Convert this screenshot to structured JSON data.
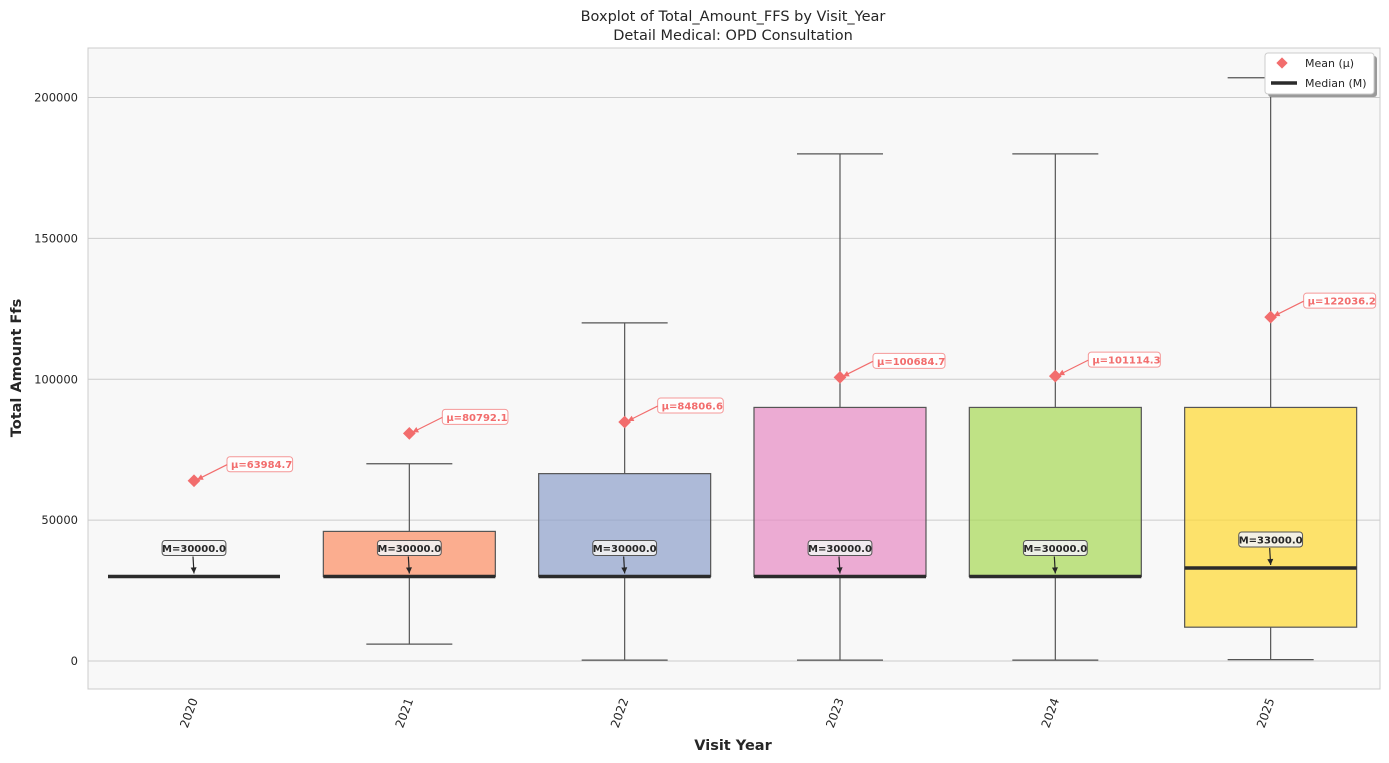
{
  "chart_data": {
    "type": "box",
    "title": "Boxplot of Total_Amount_FFS by Visit_Year",
    "subtitle": "Detail Medical: OPD Consultation",
    "xlabel": "Visit Year",
    "ylabel": "Total Amount Ffs",
    "ylim": [
      -10000,
      218000
    ],
    "yticks": [
      0,
      50000,
      100000,
      150000,
      200000
    ],
    "yticklabels": [
      "0",
      "50000",
      "100000",
      "150000",
      "200000"
    ],
    "grid": true,
    "legend_position": "top-right",
    "legend": [
      {
        "label": "Mean (μ)",
        "marker": "diamond",
        "color": "#f26d6d"
      },
      {
        "label": "Median (M)",
        "marker": "line",
        "color": "#2b2b2b"
      }
    ],
    "categories": [
      "2020",
      "2021",
      "2022",
      "2023",
      "2024",
      "2025"
    ],
    "boxes": [
      {
        "category": "2020",
        "whisker_low": 30000,
        "q1": 30000,
        "median": 30000,
        "q3": 30000,
        "whisker_high": 30000,
        "mean": 63984.7,
        "color": "#66c2a5"
      },
      {
        "category": "2021",
        "whisker_low": 6000,
        "q1": 30000,
        "median": 30000,
        "q3": 46000,
        "whisker_high": 70000,
        "mean": 80792.1,
        "color": "#fc8d62"
      },
      {
        "category": "2022",
        "whisker_low": 300,
        "q1": 30000,
        "median": 30000,
        "q3": 66500,
        "whisker_high": 120000,
        "mean": 84806.6,
        "color": "#8da0cb"
      },
      {
        "category": "2023",
        "whisker_low": 300,
        "q1": 30000,
        "median": 30000,
        "q3": 90000,
        "whisker_high": 180000,
        "mean": 100684.7,
        "color": "#e78ac3"
      },
      {
        "category": "2024",
        "whisker_low": 300,
        "q1": 30000,
        "median": 30000,
        "q3": 90000,
        "whisker_high": 180000,
        "mean": 101114.3,
        "color": "#a6d854"
      },
      {
        "category": "2025",
        "whisker_low": 500,
        "q1": 12000,
        "median": 33000,
        "q3": 90000,
        "whisker_high": 207000,
        "mean": 122036.2,
        "color": "#ffd92f"
      }
    ],
    "mean_labels": [
      "μ=63984.7",
      "μ=80792.1",
      "μ=84806.6",
      "μ=100684.7",
      "μ=101114.3",
      "μ=122036.2"
    ],
    "median_labels": [
      "M=30000.0",
      "M=30000.0",
      "M=30000.0",
      "M=30000.0",
      "M=30000.0",
      "M=33000.0"
    ],
    "colors": {
      "mean": "#f26d6d",
      "median": "#2b2b2b",
      "plot_background": "#f8f8f8",
      "grid": "#cccccc",
      "whisker": "#555555"
    }
  }
}
